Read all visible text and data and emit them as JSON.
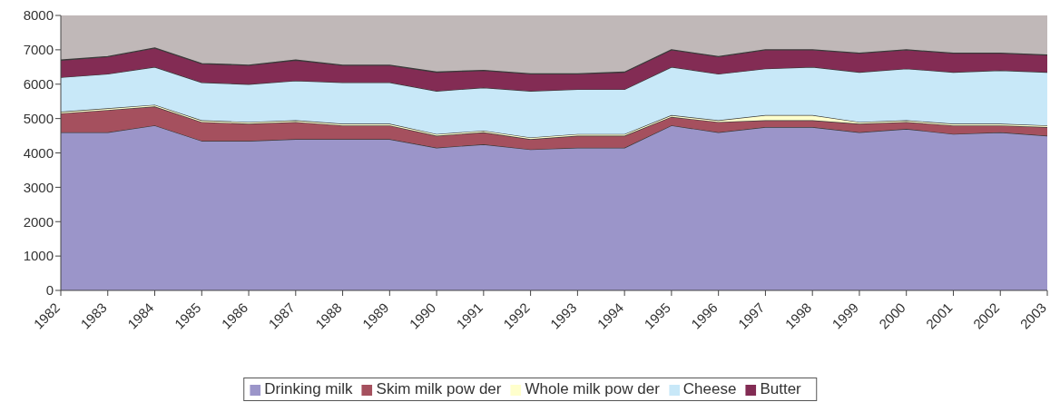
{
  "chart_data": {
    "type": "area",
    "stacked": true,
    "categories": [
      "1982",
      "1983",
      "1984",
      "1985",
      "1986",
      "1987",
      "1988",
      "1989",
      "1990",
      "1991",
      "1992",
      "1993",
      "1994",
      "1995",
      "1996",
      "1997",
      "1998",
      "1999",
      "2000",
      "2001",
      "2002",
      "2003"
    ],
    "series": [
      {
        "name": "Drinking milk",
        "color": "#9b95c9",
        "values": [
          4600,
          4600,
          4800,
          4350,
          4350,
          4400,
          4400,
          4400,
          4150,
          4250,
          4100,
          4150,
          4150,
          4800,
          4600,
          4750,
          4750,
          4600,
          4700,
          4550,
          4600,
          4500
        ]
      },
      {
        "name": "Skim milk pow der",
        "color": "#a5505e",
        "values": [
          550,
          650,
          550,
          550,
          500,
          500,
          400,
          400,
          350,
          350,
          300,
          350,
          350,
          250,
          300,
          200,
          200,
          250,
          200,
          250,
          200,
          250
        ]
      },
      {
        "name": "Whole milk pow der",
        "color": "#ffffcc",
        "values": [
          50,
          50,
          50,
          50,
          50,
          50,
          50,
          50,
          50,
          50,
          50,
          50,
          50,
          50,
          50,
          150,
          150,
          50,
          50,
          50,
          50,
          50
        ]
      },
      {
        "name": "Cheese",
        "color": "#c8e8f8",
        "values": [
          1000,
          1000,
          1100,
          1100,
          1100,
          1150,
          1200,
          1200,
          1250,
          1250,
          1350,
          1300,
          1300,
          1400,
          1350,
          1350,
          1400,
          1450,
          1500,
          1500,
          1550,
          1550
        ]
      },
      {
        "name": "Butter",
        "color": "#832c54",
        "values": [
          500,
          500,
          550,
          550,
          550,
          600,
          500,
          500,
          550,
          500,
          500,
          450,
          500,
          500,
          500,
          550,
          500,
          550,
          550,
          550,
          500,
          500
        ]
      }
    ],
    "ylim": [
      0,
      8000
    ],
    "yticks": [
      0,
      1000,
      2000,
      3000,
      4000,
      5000,
      6000,
      7000,
      8000
    ],
    "grid": false,
    "legend": "bottom"
  }
}
